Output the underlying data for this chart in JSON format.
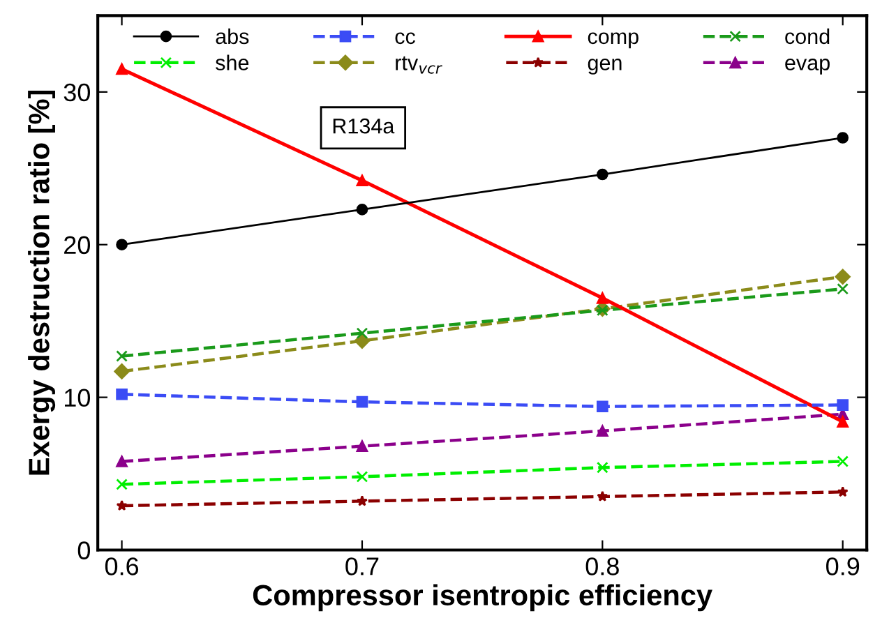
{
  "chart_data": {
    "type": "line",
    "xlabel": "Compressor isentropic efficiency",
    "ylabel": "Exergy destruction ratio [%]",
    "x": [
      0.6,
      0.7,
      0.8,
      0.9
    ],
    "series": [
      {
        "name": "abs",
        "color": "#000000",
        "values": [
          20.0,
          22.3,
          24.6,
          27.0
        ],
        "marker": "circle",
        "line_style": "solid"
      },
      {
        "name": "cc",
        "color": "#3b4cf5",
        "values": [
          10.2,
          9.7,
          9.4,
          9.5
        ],
        "marker": "square",
        "line_style": "dashed"
      },
      {
        "name": "comp",
        "color": "#ff0000",
        "values": [
          31.5,
          24.2,
          16.5,
          8.4
        ],
        "marker": "triangle",
        "line_style": "solid"
      },
      {
        "name": "cond",
        "color": "#1a9a1a",
        "values": [
          12.7,
          14.2,
          15.7,
          17.1
        ],
        "marker": "cross",
        "line_style": "dashed"
      },
      {
        "name": "she",
        "color": "#00ee00",
        "values": [
          4.3,
          4.8,
          5.4,
          5.8
        ],
        "marker": "cross",
        "line_style": "dashed"
      },
      {
        "name": "rtv$_{vcr}$",
        "color": "#8b8b1a",
        "values": [
          11.7,
          13.7,
          15.8,
          17.9
        ],
        "marker": "diamond",
        "line_style": "dashed"
      },
      {
        "name": "gen",
        "color": "#8b0000",
        "values": [
          2.9,
          3.2,
          3.5,
          3.8
        ],
        "marker": "star",
        "line_style": "dashed"
      },
      {
        "name": "evap",
        "color": "#8b008b",
        "values": [
          5.8,
          6.8,
          7.8,
          8.9
        ],
        "marker": "triangle",
        "line_style": "dashed"
      }
    ],
    "xlim": [
      0.59,
      0.91
    ],
    "xticks": [
      0.6,
      0.7,
      0.8,
      0.9
    ],
    "ylim": [
      0,
      35
    ],
    "yticks": [
      0,
      10,
      20,
      30
    ],
    "grid": false,
    "legend": "top",
    "annotations": [
      "R134a"
    ]
  }
}
